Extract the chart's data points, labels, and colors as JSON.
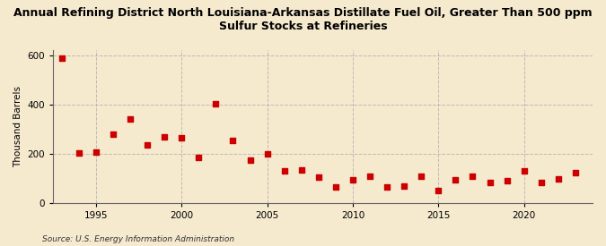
{
  "title": "Annual Refining District North Louisiana-Arkansas Distillate Fuel Oil, Greater Than 500 ppm\nSulfur Stocks at Refineries",
  "ylabel": "Thousand Barrels",
  "source": "Source: U.S. Energy Information Administration",
  "background_color": "#f5e9ce",
  "plot_background_color": "#f5e9ce",
  "marker_color": "#cc0000",
  "grid_color": "#b0b0b0",
  "years": [
    1993,
    1994,
    1995,
    1996,
    1997,
    1998,
    1999,
    2000,
    2001,
    2002,
    2003,
    2004,
    2005,
    2006,
    2007,
    2008,
    2009,
    2010,
    2011,
    2012,
    2013,
    2014,
    2015,
    2016,
    2017,
    2018,
    2019,
    2020,
    2021,
    2022,
    2023
  ],
  "values": [
    590,
    205,
    208,
    280,
    340,
    235,
    270,
    265,
    185,
    405,
    255,
    175,
    200,
    130,
    135,
    105,
    65,
    95,
    110,
    65,
    70,
    110,
    50,
    95,
    110,
    85,
    90,
    130,
    85,
    100,
    125
  ],
  "ylim": [
    0,
    620
  ],
  "yticks": [
    0,
    200,
    400,
    600
  ],
  "xlim": [
    1992.5,
    2024
  ],
  "xticks": [
    1995,
    2000,
    2005,
    2010,
    2015,
    2020
  ],
  "title_fontsize": 9,
  "label_fontsize": 7.5,
  "tick_fontsize": 7.5,
  "source_fontsize": 6.5
}
